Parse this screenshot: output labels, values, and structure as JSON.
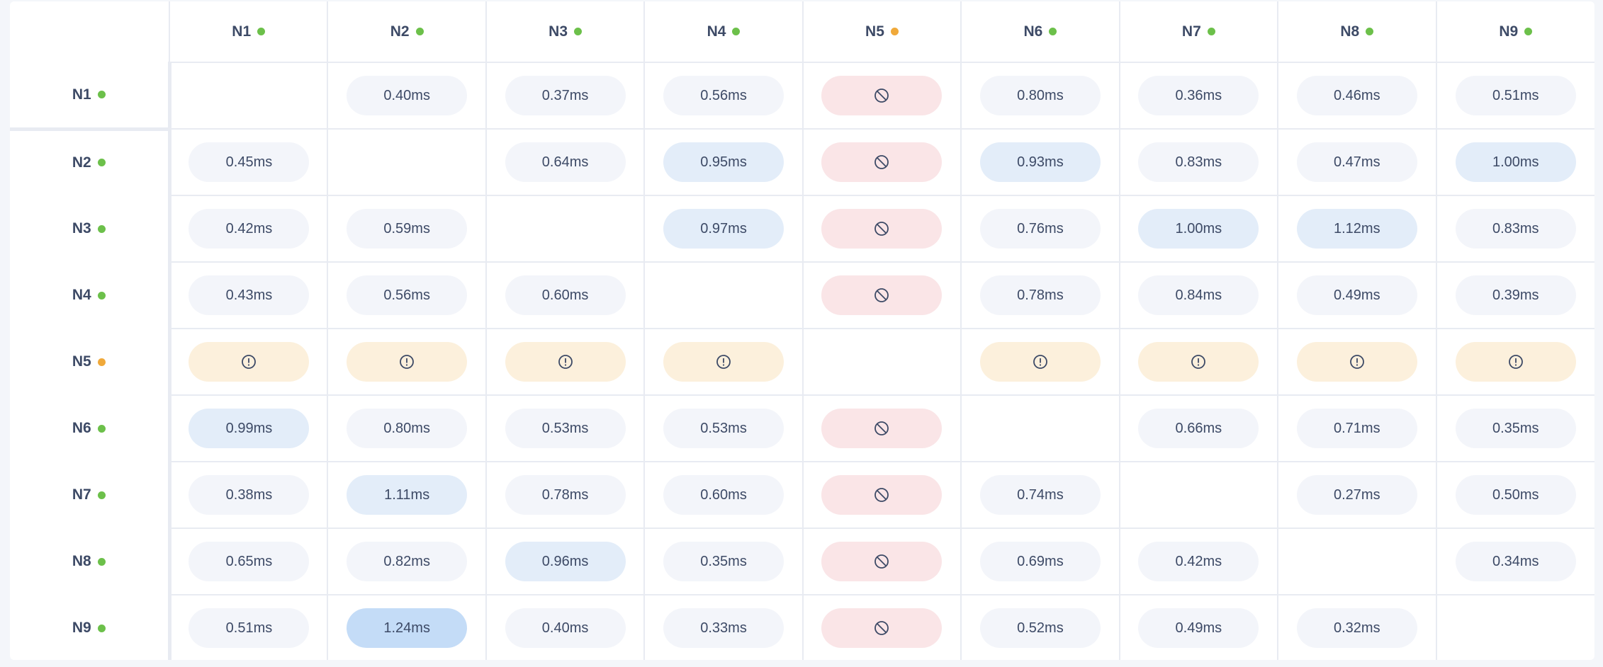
{
  "colors": {
    "status_up": "#6cc04a",
    "status_warn": "#f0a93a",
    "pill_normal": "#f3f5fa",
    "pill_slow": "#e3edf9",
    "pill_slowest": "#c4dcf7",
    "pill_blocked": "#fae5e7",
    "pill_warning": "#fcf0dc"
  },
  "nodes": [
    {
      "label": "N1",
      "status": "up"
    },
    {
      "label": "N2",
      "status": "up"
    },
    {
      "label": "N3",
      "status": "up"
    },
    {
      "label": "N4",
      "status": "up"
    },
    {
      "label": "N5",
      "status": "warn"
    },
    {
      "label": "N6",
      "status": "up"
    },
    {
      "label": "N7",
      "status": "up"
    },
    {
      "label": "N8",
      "status": "up"
    },
    {
      "label": "N9",
      "status": "up"
    }
  ],
  "matrix": [
    [
      "",
      "0.40ms",
      "0.37ms",
      "0.56ms",
      "blocked",
      "0.80ms",
      "0.36ms",
      "0.46ms",
      "0.51ms"
    ],
    [
      "0.45ms",
      "",
      "0.64ms",
      "0.95ms",
      "blocked",
      "0.93ms",
      "0.83ms",
      "0.47ms",
      "1.00ms"
    ],
    [
      "0.42ms",
      "0.59ms",
      "",
      "0.97ms",
      "blocked",
      "0.76ms",
      "1.00ms",
      "1.12ms",
      "0.83ms"
    ],
    [
      "0.43ms",
      "0.56ms",
      "0.60ms",
      "",
      "blocked",
      "0.78ms",
      "0.84ms",
      "0.49ms",
      "0.39ms"
    ],
    [
      "warning",
      "warning",
      "warning",
      "warning",
      "",
      "warning",
      "warning",
      "warning",
      "warning"
    ],
    [
      "0.99ms",
      "0.80ms",
      "0.53ms",
      "0.53ms",
      "blocked",
      "",
      "0.66ms",
      "0.71ms",
      "0.35ms"
    ],
    [
      "0.38ms",
      "1.11ms",
      "0.78ms",
      "0.60ms",
      "blocked",
      "0.74ms",
      "",
      "0.27ms",
      "0.50ms"
    ],
    [
      "0.65ms",
      "0.82ms",
      "0.96ms",
      "0.35ms",
      "blocked",
      "0.69ms",
      "0.42ms",
      "",
      "0.34ms"
    ],
    [
      "0.51ms",
      "1.24ms",
      "0.40ms",
      "0.33ms",
      "blocked",
      "0.52ms",
      "0.49ms",
      "0.32ms",
      ""
    ]
  ],
  "icons": {
    "blocked": "blocked-icon",
    "warning": "warning-icon"
  }
}
